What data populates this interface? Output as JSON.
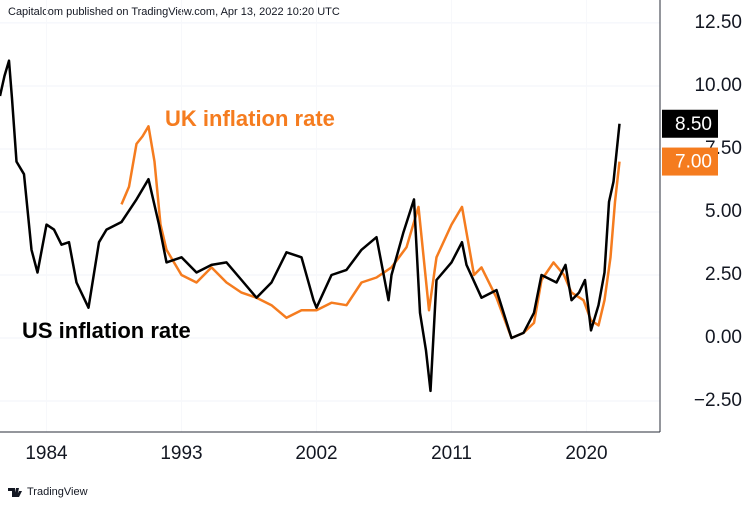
{
  "chart_data": {
    "type": "line",
    "header": "Capitalcom published on TradingView.com, Apr 13, 2022 10:20 UTC",
    "footer": "TradingView",
    "annotations": [
      {
        "text": "UK inflation rate",
        "color": "#f57c1f"
      },
      {
        "text": "US inflation rate",
        "color": "#000000"
      }
    ],
    "xlim": [
      1980.9,
      2024.9
    ],
    "xticks": [
      1984,
      1993,
      2002,
      2011,
      2020
    ],
    "ylim": [
      -3.73,
      13.41
    ],
    "yticks": [
      {
        "value": -2.5,
        "label": "−2.50"
      },
      {
        "value": 0,
        "label": "0.00"
      },
      {
        "value": 2.5,
        "label": "2.50"
      },
      {
        "value": 5,
        "label": "5.00"
      },
      {
        "value": 7.5,
        "label": "7.50"
      },
      {
        "value": 10,
        "label": "10.00"
      },
      {
        "value": 12.5,
        "label": "12.50"
      }
    ],
    "grid": true,
    "series": [
      {
        "name": "US inflation rate",
        "color": "#000000",
        "price_label": "8.50",
        "x": [
          1980.9,
          1981.2,
          1981.5,
          1981.7,
          1982.0,
          1982.5,
          1983.0,
          1983.4,
          1984.0,
          1984.5,
          1985.0,
          1985.5,
          1986.0,
          1986.8,
          1987.5,
          1988.0,
          1989.0,
          1990.0,
          1990.8,
          1991.5,
          1992.0,
          1993.0,
          1994.0,
          1995.0,
          1996.0,
          1997.0,
          1998.0,
          1999.0,
          2000.0,
          2001.0,
          2001.8,
          2002.0,
          2003.0,
          2004.0,
          2005.0,
          2006.0,
          2006.8,
          2007.0,
          2007.8,
          2008.5,
          2008.9,
          2009.3,
          2009.6,
          2010.0,
          2011.0,
          2011.7,
          2012.0,
          2013.0,
          2014.0,
          2015.0,
          2015.8,
          2016.5,
          2017.0,
          2018.0,
          2018.6,
          2019.0,
          2019.5,
          2019.9,
          2020.3,
          2020.8,
          2021.2,
          2021.5,
          2021.8,
          2022.2
        ],
        "values": [
          9.6,
          10.4,
          11.0,
          9.5,
          7.0,
          6.5,
          3.5,
          2.6,
          4.5,
          4.3,
          3.7,
          3.8,
          2.2,
          1.2,
          3.8,
          4.3,
          4.6,
          5.5,
          6.3,
          4.5,
          3.0,
          3.2,
          2.6,
          2.9,
          3.0,
          2.3,
          1.6,
          2.2,
          3.4,
          3.2,
          1.5,
          1.2,
          2.5,
          2.7,
          3.5,
          4.0,
          1.5,
          2.5,
          4.2,
          5.5,
          1.0,
          -0.5,
          -2.1,
          2.3,
          3.0,
          3.8,
          2.9,
          1.6,
          1.9,
          0.0,
          0.2,
          1.0,
          2.5,
          2.2,
          2.9,
          1.5,
          1.8,
          2.3,
          0.3,
          1.3,
          2.6,
          5.4,
          6.2,
          8.5
        ]
      },
      {
        "name": "UK inflation rate",
        "color": "#f57c1f",
        "price_label": "7.00",
        "x": [
          1989.0,
          1989.5,
          1990.0,
          1990.4,
          1990.8,
          1991.2,
          1991.6,
          1992.0,
          1993.0,
          1994.0,
          1995.0,
          1996.0,
          1997.0,
          1998.0,
          1999.0,
          2000.0,
          2001.0,
          2002.0,
          2003.0,
          2004.0,
          2005.0,
          2006.0,
          2007.0,
          2008.0,
          2008.8,
          2009.5,
          2010.0,
          2011.0,
          2011.7,
          2012.5,
          2013.0,
          2014.0,
          2015.0,
          2015.8,
          2016.5,
          2017.0,
          2017.8,
          2018.5,
          2019.0,
          2019.8,
          2020.3,
          2020.8,
          2021.2,
          2021.6,
          2021.9,
          2022.2
        ],
        "values": [
          5.3,
          6.0,
          7.7,
          8.0,
          8.4,
          7.0,
          4.5,
          3.5,
          2.5,
          2.2,
          2.8,
          2.2,
          1.8,
          1.6,
          1.3,
          0.8,
          1.1,
          1.1,
          1.4,
          1.3,
          2.2,
          2.4,
          2.8,
          3.6,
          5.2,
          1.1,
          3.2,
          4.5,
          5.2,
          2.5,
          2.8,
          1.6,
          0.0,
          0.2,
          0.6,
          2.3,
          3.0,
          2.5,
          1.8,
          1.5,
          0.7,
          0.5,
          1.5,
          3.2,
          5.4,
          7.0
        ]
      }
    ]
  }
}
